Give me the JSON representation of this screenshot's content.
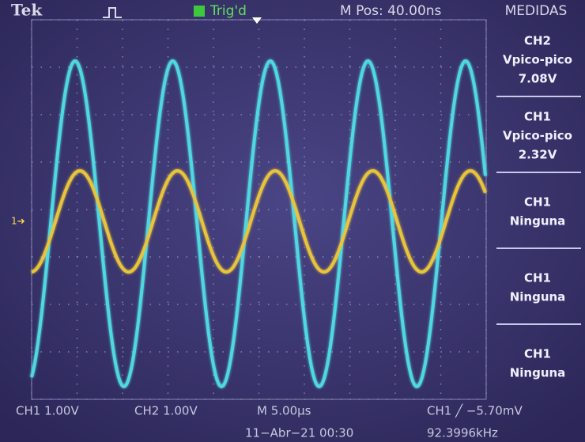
{
  "header": {
    "brand": "Tek",
    "trigger_status": "Trig'd",
    "position": "M Pos: 40.00ns",
    "menu_title": "MEDIDAS"
  },
  "measurements": [
    {
      "channel": "CH2",
      "type": "Vpico-pico",
      "value": "7.08V"
    },
    {
      "channel": "CH1",
      "type": "Vpico-pico",
      "value": "2.32V"
    },
    {
      "channel": "CH1",
      "type": "Ninguna"
    },
    {
      "channel": "CH1",
      "type": "Ninguna"
    },
    {
      "channel": "CH1",
      "type": "Ninguna"
    }
  ],
  "footer": {
    "ch1_scale": "CH1  1.00V",
    "ch2_scale": "CH2  1.00V",
    "timebase": "M 5.00µs",
    "trigger_level": "CH1 ╱ −5.70mV",
    "date": "11−Abr−21 00:30",
    "frequency": "92.3996kHz"
  }
}
